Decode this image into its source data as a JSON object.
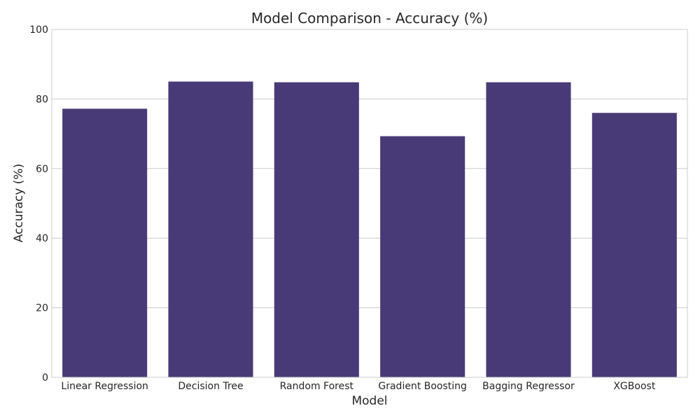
{
  "chart_data": {
    "type": "bar",
    "title": "Model Comparison - Accuracy (%)",
    "xlabel": "Model",
    "ylabel": "Accuracy (%)",
    "categories": [
      "Linear Regression",
      "Decision Tree",
      "Random Forest",
      "Gradient Boosting",
      "Bagging Regressor",
      "XGBoost"
    ],
    "values": [
      77.2,
      85.0,
      84.8,
      69.3,
      84.8,
      76.0
    ],
    "ylim": [
      0,
      100
    ],
    "yticks": [
      0,
      20,
      40,
      60,
      80,
      100
    ],
    "bar_color": "#483a77",
    "grid": true
  }
}
